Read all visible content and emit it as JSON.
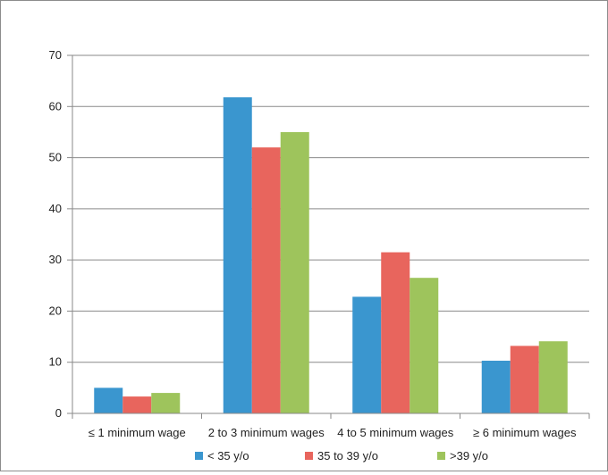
{
  "chart_data": {
    "type": "bar",
    "title": "",
    "xlabel": "",
    "ylabel": "",
    "categories": [
      "≤ 1 minimum wage",
      "2 to 3 minimum wages",
      "4 to 5 minimum wages",
      "≥ 6 minimum wages"
    ],
    "series": [
      {
        "name": "< 35 y/o",
        "color": "#3a96cf",
        "values": [
          5,
          61.8,
          22.8,
          10.3
        ]
      },
      {
        "name": "35 to 39 y/o",
        "color": "#e8655d",
        "values": [
          3.3,
          52,
          31.5,
          13.2
        ]
      },
      {
        "name": ">39 y/o",
        "color": "#9ec45c",
        "values": [
          4,
          55,
          26.5,
          14.1
        ]
      }
    ],
    "ylim": [
      0,
      70
    ],
    "yticks": [
      0,
      10,
      20,
      30,
      40,
      50,
      60,
      70
    ],
    "grid": true,
    "legend_position": "bottom"
  }
}
